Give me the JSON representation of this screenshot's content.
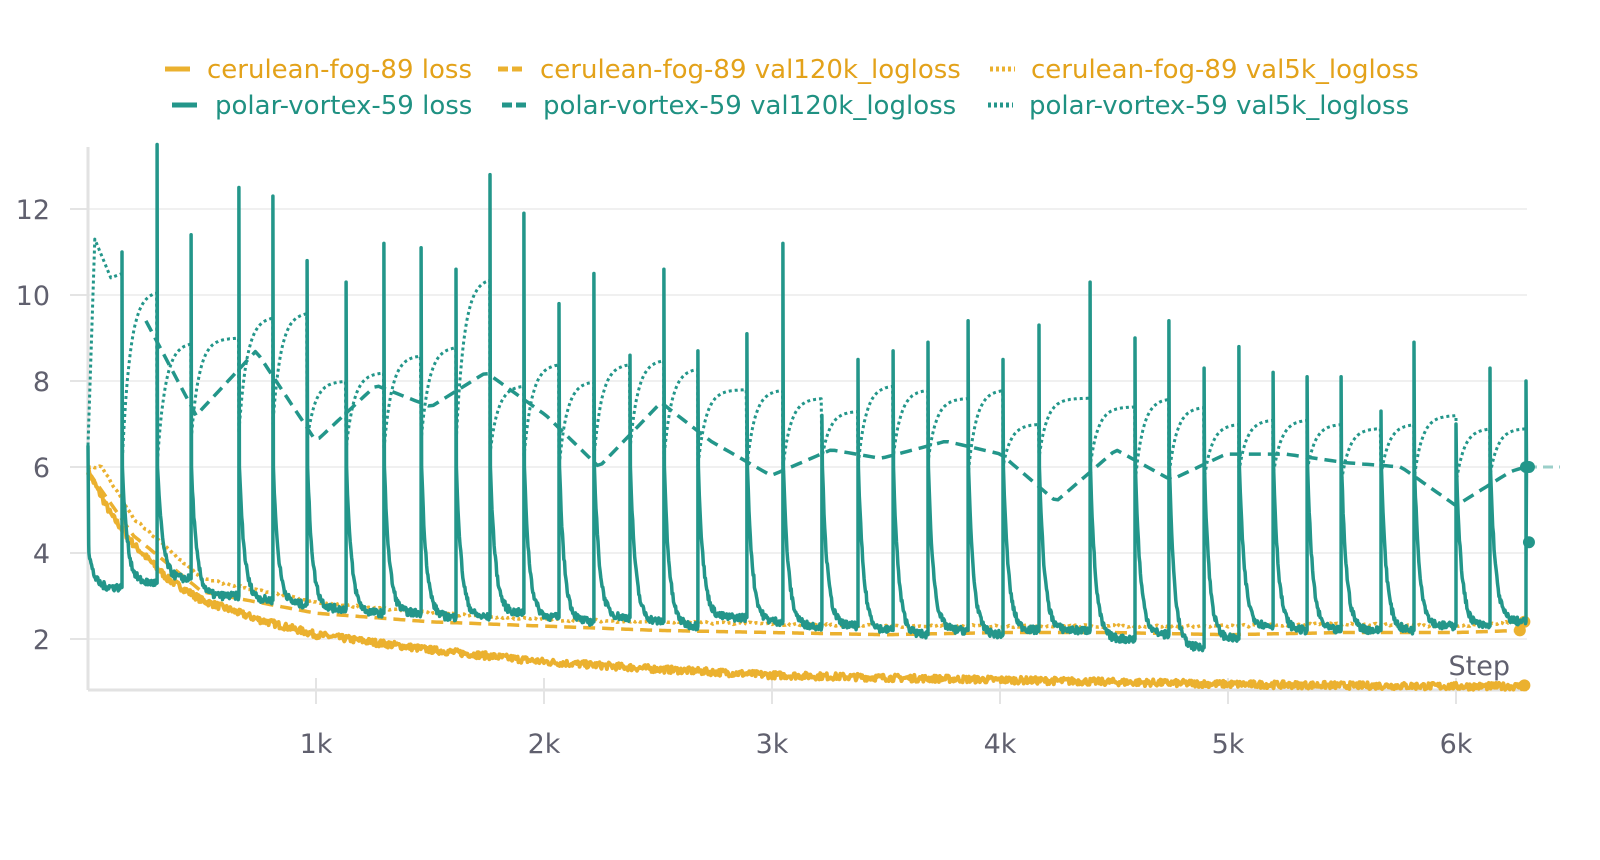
{
  "chart_data": {
    "type": "line",
    "title": "",
    "xlabel": "Step",
    "ylabel": "",
    "xlim": [
      0,
      6320
    ],
    "ylim": [
      0.8,
      13.5
    ],
    "grid": true,
    "legend_position": "top",
    "x_ticks": [
      {
        "value": 1000,
        "label": "1k"
      },
      {
        "value": 2000,
        "label": "2k"
      },
      {
        "value": 3000,
        "label": "3k"
      },
      {
        "value": 4000,
        "label": "4k"
      },
      {
        "value": 5000,
        "label": "5k"
      },
      {
        "value": 6000,
        "label": "6k"
      }
    ],
    "y_ticks": [
      {
        "value": 2,
        "label": "2"
      },
      {
        "value": 4,
        "label": "4"
      },
      {
        "value": 6,
        "label": "6"
      },
      {
        "value": 8,
        "label": "8"
      },
      {
        "value": 10,
        "label": "10"
      },
      {
        "value": 12,
        "label": "12"
      }
    ],
    "colors": {
      "cerulean": "#EBB12F",
      "cerulean_text": "#E3A21A",
      "polar": "#23968A",
      "polar_text": "#1F9182"
    },
    "series": [
      {
        "name": "cerulean-fog-89 loss",
        "run": "cerulean",
        "style": "solid",
        "x": [
          0,
          100,
          200,
          350,
          500,
          750,
          1000,
          1500,
          2000,
          2500,
          3000,
          3500,
          4000,
          4500,
          5000,
          5500,
          6000,
          6300
        ],
        "y": [
          5.9,
          4.9,
          4.2,
          3.4,
          2.9,
          2.45,
          2.1,
          1.75,
          1.47,
          1.3,
          1.16,
          1.1,
          1.05,
          1.0,
          0.95,
          0.92,
          0.9,
          0.9
        ]
      },
      {
        "name": "cerulean-fog-89 val120k_logloss",
        "run": "cerulean",
        "style": "dashed",
        "x": [
          0,
          200,
          500,
          1000,
          1500,
          2000,
          2500,
          3000,
          3500,
          4000,
          4500,
          5000,
          5500,
          6000,
          6280
        ],
        "y": [
          5.9,
          4.4,
          3.1,
          2.6,
          2.4,
          2.3,
          2.2,
          2.15,
          2.1,
          2.15,
          2.15,
          2.1,
          2.15,
          2.15,
          2.2
        ]
      },
      {
        "name": "cerulean-fog-89 val5k_logloss",
        "run": "cerulean",
        "style": "dotted",
        "x": [
          0,
          60,
          200,
          500,
          1000,
          1500,
          2000,
          2500,
          3000,
          3500,
          4000,
          4500,
          5000,
          5500,
          6000,
          6300
        ],
        "y": [
          6.0,
          6.0,
          4.8,
          3.4,
          2.85,
          2.6,
          2.45,
          2.4,
          2.35,
          2.3,
          2.3,
          2.3,
          2.3,
          2.35,
          2.3,
          2.4
        ]
      },
      {
        "name": "polar-vortex-59 loss",
        "run": "polar",
        "style": "solid",
        "start": [
          0,
          6.5
        ],
        "spike_steps": [
          149,
          303,
          452,
          662,
          811,
          961,
          1132,
          1298,
          1461,
          1614,
          1763,
          1912,
          2066,
          2219,
          2377,
          2526,
          2675,
          2890,
          3048,
          3219,
          3377,
          3531,
          3684,
          3860,
          4013,
          4171,
          4395,
          4592,
          4741,
          4895,
          5048,
          5198,
          5347,
          5496,
          5671,
          5816,
          6000,
          6149,
          6307
        ],
        "spike_peaks": [
          11.0,
          13.5,
          11.4,
          12.5,
          12.3,
          10.8,
          10.3,
          11.2,
          11.1,
          10.6,
          12.8,
          11.9,
          9.8,
          10.5,
          8.6,
          10.6,
          8.7,
          9.1,
          11.2,
          7.2,
          8.5,
          8.7,
          8.9,
          9.4,
          8.5,
          9.3,
          10.3,
          9.0,
          9.4,
          8.3,
          8.8,
          8.2,
          8.1,
          8.1,
          7.3,
          8.9,
          7.0,
          8.3,
          8.0
        ],
        "troughs": [
          3.2,
          3.3,
          3.4,
          3.0,
          2.9,
          2.8,
          2.7,
          2.6,
          2.6,
          2.5,
          2.5,
          2.6,
          2.5,
          2.4,
          2.5,
          2.4,
          2.3,
          2.5,
          2.4,
          2.3,
          2.3,
          2.2,
          2.1,
          2.2,
          2.1,
          2.2,
          2.2,
          2.0,
          2.1,
          1.8,
          2.0,
          2.3,
          2.2,
          2.2,
          2.2,
          2.2,
          2.3,
          2.3,
          2.4
        ],
        "last_value": 3.5
      },
      {
        "name": "polar-vortex-59 val120k_logloss",
        "run": "polar",
        "style": "dashed",
        "x": [
          254,
          474,
          737,
          1000,
          1263,
          1504,
          1746,
          2009,
          2241,
          2513,
          2732,
          2996,
          3259,
          3478,
          3763,
          4004,
          4246,
          4509,
          4750,
          4991,
          5254,
          5518,
          5759,
          6000,
          6241,
          6307
        ],
        "y": [
          9.4,
          7.2,
          8.7,
          6.6,
          7.9,
          7.4,
          8.2,
          7.2,
          6.0,
          7.5,
          6.6,
          5.8,
          6.4,
          6.2,
          6.6,
          6.3,
          5.2,
          6.4,
          5.7,
          6.3,
          6.3,
          6.1,
          6.0,
          5.1,
          5.9,
          6.0
        ]
      },
      {
        "name": "polar-vortex-59 val5k_logloss",
        "run": "polar",
        "style": "dotted",
        "start": [
          [
            0,
            6.5
          ],
          [
            30,
            11.3
          ],
          [
            100,
            10.4
          ],
          [
            149,
            10.5
          ]
        ],
        "cycle_lows": [
          6.0,
          6.0,
          6.6,
          6.8,
          7.0,
          6.6,
          6.4,
          6.4,
          6.6,
          6.5,
          6.3,
          6.2,
          6.0,
          6.2,
          6.4,
          6.2,
          6.0,
          6.0,
          6.0,
          6.2,
          6.0,
          6.2,
          6.1,
          5.8,
          6.0,
          6.2,
          6.0,
          5.6,
          5.8,
          5.7,
          5.9,
          5.8,
          5.9,
          5.6,
          5.8,
          5.7,
          5.6,
          5.8,
          5.9
        ],
        "cycle_highs": [
          10.1,
          8.9,
          9.0,
          9.5,
          9.6,
          8.0,
          8.2,
          8.6,
          8.8,
          10.4,
          0,
          8.4,
          8.0,
          8.4,
          8.5,
          8.3,
          7.8,
          7.8,
          7.6,
          7.3,
          7.9,
          7.8,
          7.6,
          7.8,
          7.0,
          7.6,
          7.4,
          7.6,
          7.4,
          7.0,
          7.1,
          7.1,
          7.0,
          6.9,
          7.0,
          7.2,
          6.9,
          6.9,
          6.9
        ]
      }
    ]
  },
  "legend": [
    {
      "label": "cerulean-fog-89 loss"
    },
    {
      "label": "cerulean-fog-89 val120k_logloss"
    },
    {
      "label": "cerulean-fog-89 val5k_logloss"
    },
    {
      "label": "polar-vortex-59 loss"
    },
    {
      "label": "polar-vortex-59 val120k_logloss"
    },
    {
      "label": "polar-vortex-59 val5k_logloss"
    }
  ]
}
